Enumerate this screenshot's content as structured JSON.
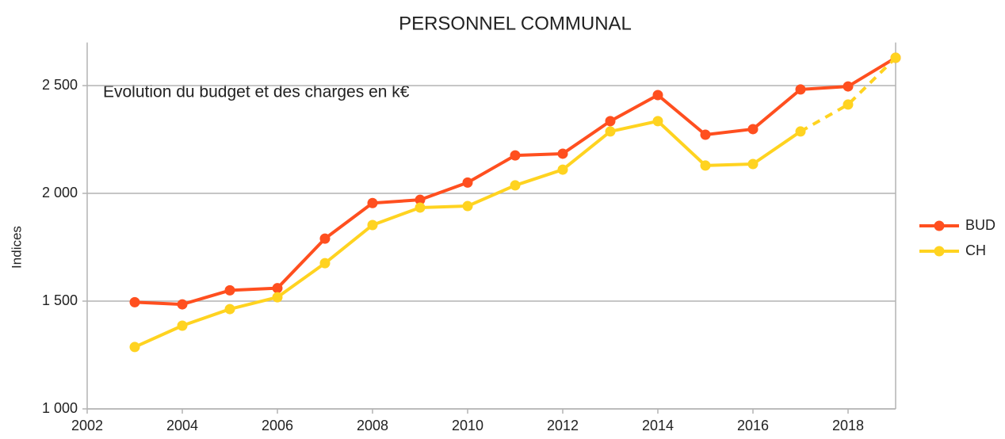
{
  "chart_data": {
    "type": "line",
    "title": "PERSONNEL COMMUNAL",
    "annotation": "Evolution du budget et des charges en k€",
    "y_label": "Indices",
    "x": [
      2003,
      2004,
      2005,
      2006,
      2007,
      2008,
      2009,
      2010,
      2011,
      2012,
      2013,
      2014,
      2015,
      2016,
      2017,
      2018,
      2019
    ],
    "series": [
      {
        "name": "BUD",
        "color": "#ff4f1f",
        "values": [
          1495,
          1485,
          1550,
          1560,
          1790,
          1955,
          1970,
          2050,
          2176,
          2184,
          2335,
          2456,
          2272,
          2298,
          2482,
          2496,
          2629
        ]
      },
      {
        "name": "CH",
        "color": "#ffd320",
        "dashed_from_x": 2017,
        "values": [
          1287,
          1386,
          1463,
          1518,
          1676,
          1853,
          1934,
          1941,
          2037,
          2110,
          2287,
          2335,
          2129,
          2136,
          2287,
          2412,
          2629
        ]
      }
    ],
    "xlim": [
      2002,
      2019
    ],
    "xticks": [
      2002,
      2004,
      2006,
      2008,
      2010,
      2012,
      2014,
      2016,
      2018
    ],
    "ylim": [
      1000,
      2700
    ],
    "yticks": [
      {
        "value": 1000,
        "label": "1 000"
      },
      {
        "value": 1500,
        "label": "1 500"
      },
      {
        "value": 2000,
        "label": "2 000"
      },
      {
        "value": 2500,
        "label": "2 500"
      }
    ],
    "grid": true,
    "legend": "right"
  }
}
